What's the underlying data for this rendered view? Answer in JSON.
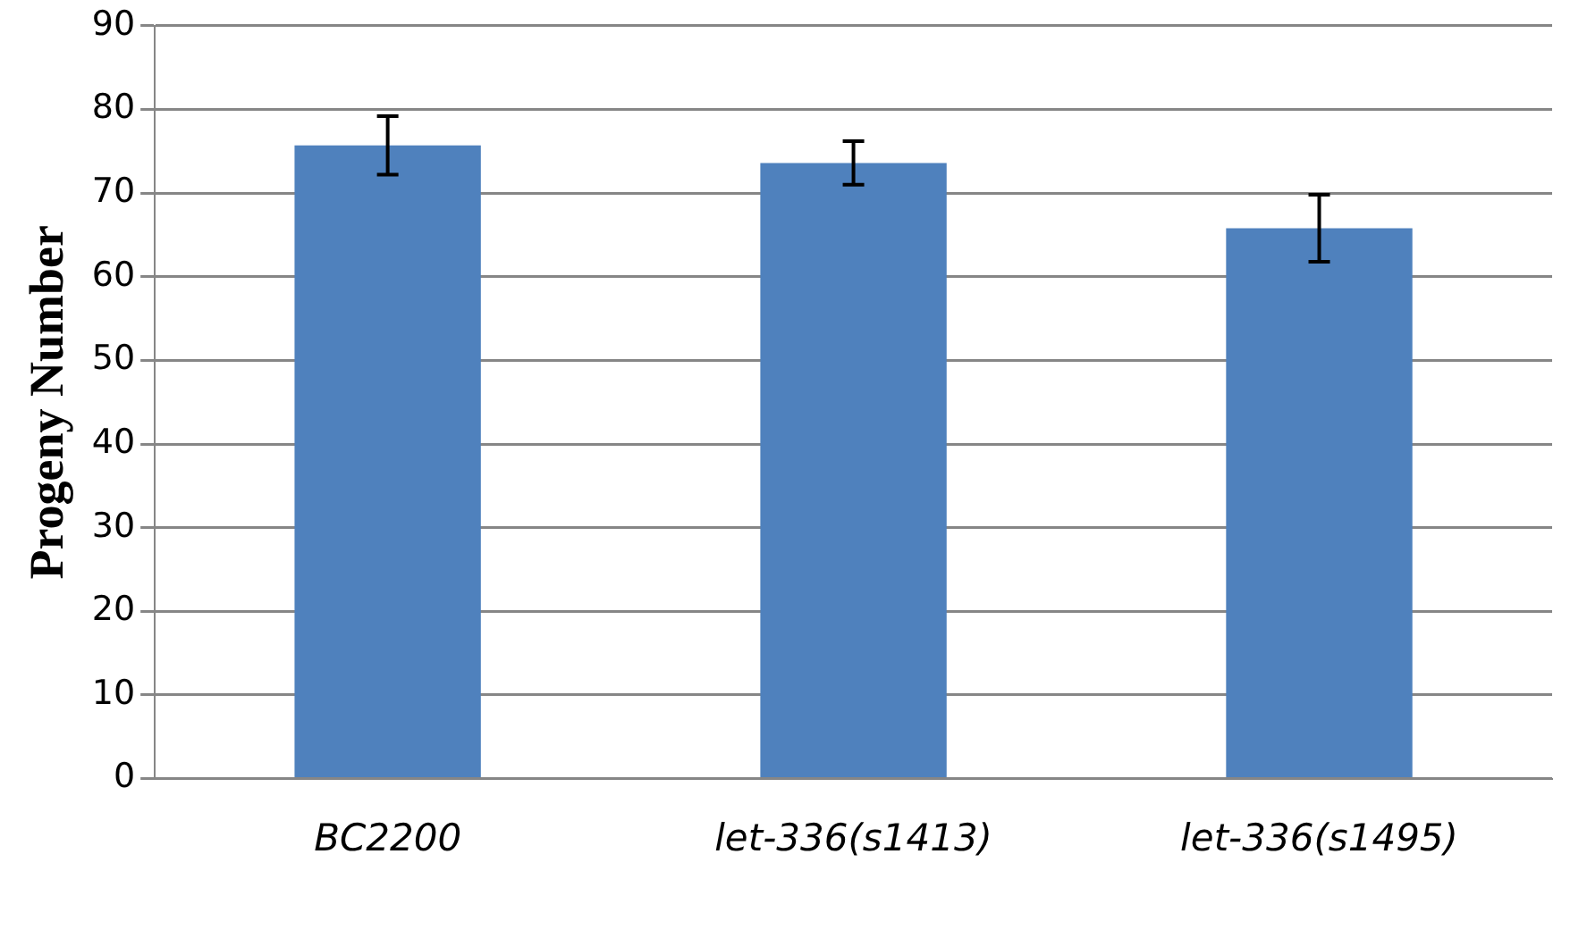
{
  "chart_data": {
    "type": "bar",
    "ylabel": "Progeny Number",
    "categories": [
      "BC2200",
      "let-336(s1413)",
      "let-336(s1495)"
    ],
    "values": [
      75.7,
      73.6,
      65.8
    ],
    "errors": [
      3.5,
      2.6,
      4.0
    ],
    "color": "#4f81bd",
    "ylim": [
      0,
      90
    ],
    "yticks": [
      0,
      10,
      20,
      30,
      40,
      50,
      60,
      70,
      80,
      90
    ],
    "grid": "y",
    "legend": false
  }
}
